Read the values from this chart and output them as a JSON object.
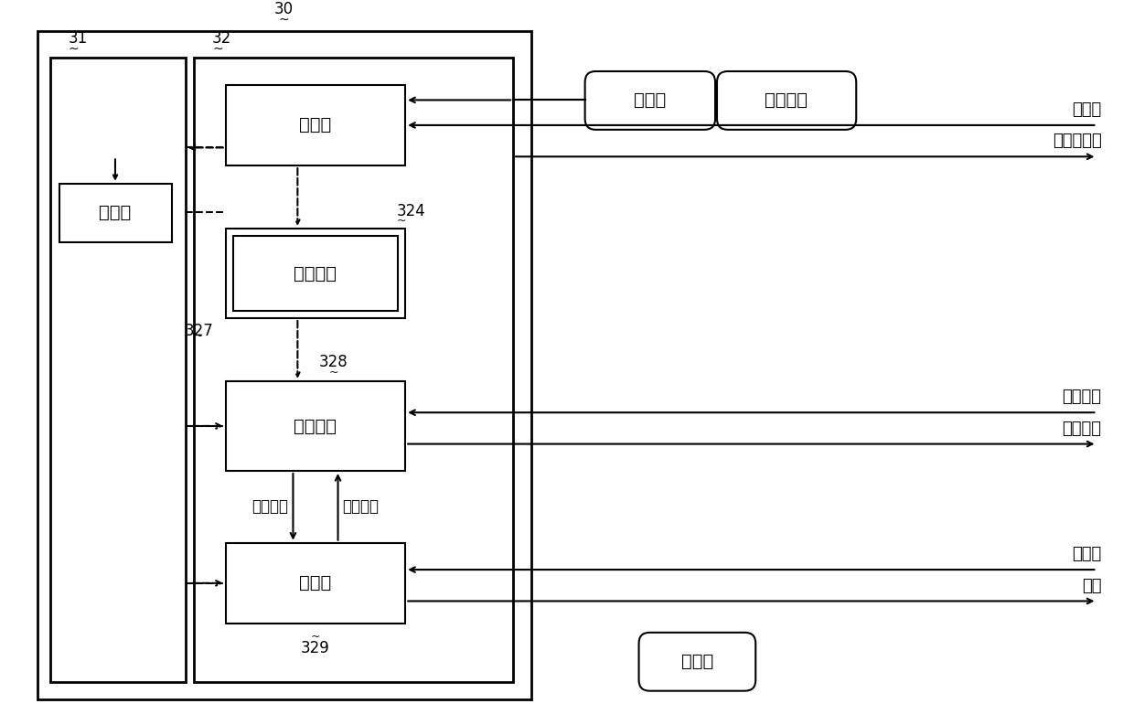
{
  "bg_color": "#ffffff",
  "line_color": "#000000",
  "fig_width": 12.4,
  "fig_height": 7.93,
  "labels": {
    "30": "30",
    "31": "31",
    "32": "32",
    "327": "327",
    "324": "324",
    "328": "328",
    "329": "329",
    "write_part": "写部分",
    "check_info_box": "检验信息",
    "check_part": "检验部分",
    "read_part": "读部分",
    "true_data_mem": "真数据",
    "true_data_top_left": "真数据",
    "check_info_top": "检验信息",
    "true_data_bottom": "真数据",
    "write_req": "写请求",
    "write_done": "写完成通告",
    "check_req_right": "检验请求",
    "check_result_right": "检验结果",
    "read_req": "读请求",
    "read_out": "读出",
    "check_req_bottom": "检验请求",
    "check_result_bottom": "检验结果"
  }
}
